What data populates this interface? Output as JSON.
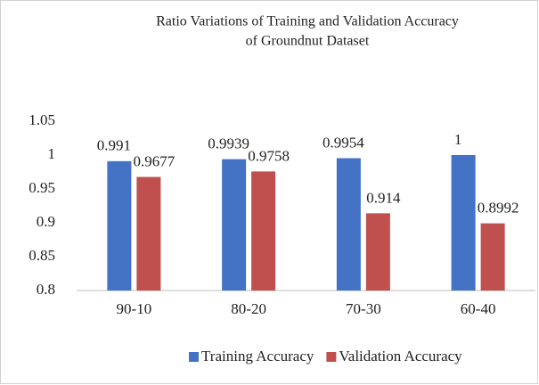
{
  "chart_data": {
    "type": "bar",
    "title": [
      "Ratio Variations of Training and Validation Accuracy",
      "of Groundnut Dataset"
    ],
    "categories": [
      "90-10",
      "80-20",
      "70-30",
      "60-40"
    ],
    "series": [
      {
        "name": "Training Accuracy",
        "color": "#4472c4",
        "values": [
          0.991,
          0.9939,
          0.9954,
          1
        ]
      },
      {
        "name": "Validation Accuracy",
        "color": "#c0504d",
        "values": [
          0.9677,
          0.9758,
          0.914,
          0.8992
        ]
      }
    ],
    "ylim": [
      0.8,
      1.05
    ],
    "yticks": [
      0.8,
      0.85,
      0.9,
      0.95,
      1,
      1.05
    ],
    "grid": false,
    "legend": "bottom"
  }
}
